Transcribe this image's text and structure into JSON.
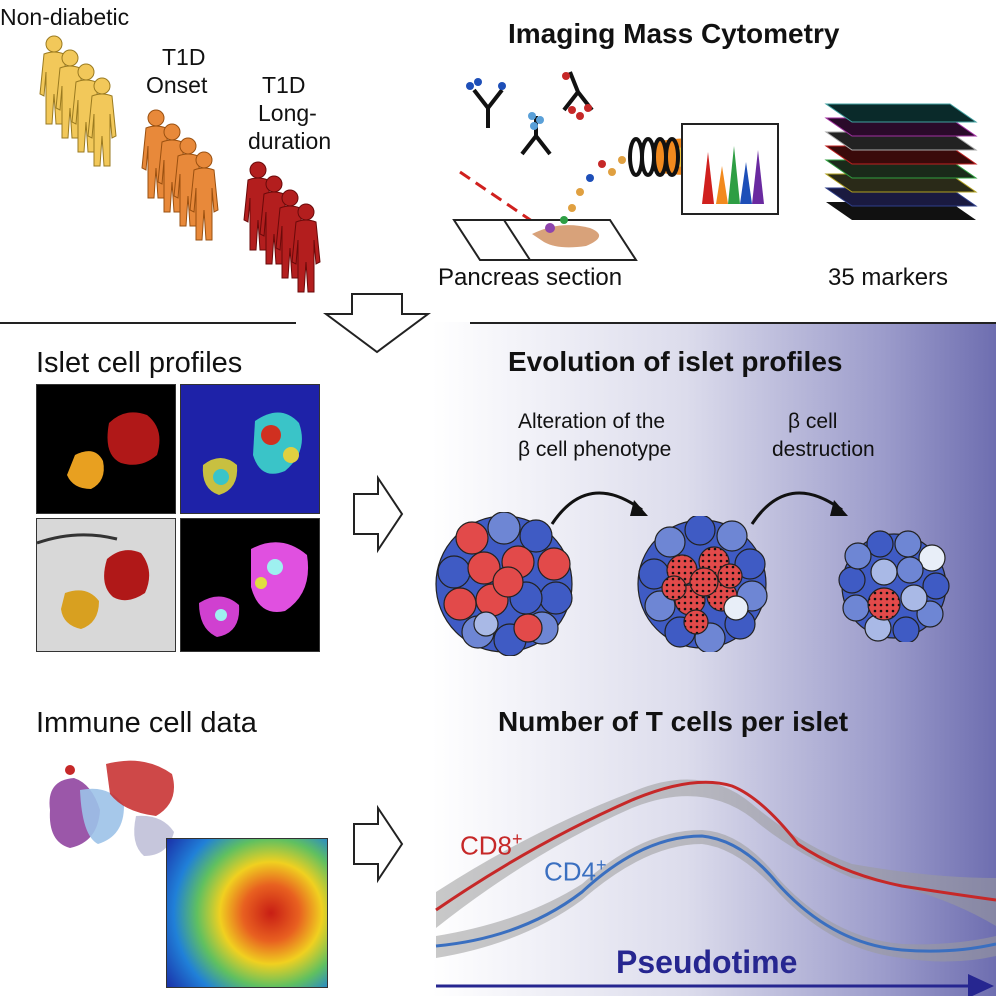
{
  "groups": {
    "non_diabetic": "Non-diabetic",
    "t1d_onset_1": "T1D",
    "t1d_onset_2": "Onset",
    "t1d_long_1": "T1D",
    "t1d_long_2": "Long-",
    "t1d_long_3": "duration"
  },
  "imc": {
    "title": "Imaging Mass Cytometry",
    "section_label": "Pancreas section",
    "markers_label": "35 markers"
  },
  "islet_profiles": {
    "title": "Islet cell profiles"
  },
  "immune_data": {
    "title": "Immune cell data"
  },
  "evolution": {
    "title": "Evolution of islet profiles",
    "step1_line1": "Alteration of the",
    "step1_line2": "β cell phenotype",
    "step2_line1": "β cell",
    "step2_line2": "destruction"
  },
  "tcells": {
    "title": "Number of T cells per islet",
    "cd8": "CD8",
    "cd4": "CD4",
    "plus": "+",
    "xlabel": "Pseudotime"
  },
  "colors": {
    "non_diabetic": "#f2c85a",
    "onset": "#e8893a",
    "long": "#b31e1e",
    "cd8": "#c62828",
    "cd4": "#3a6fc0",
    "pseudotime": "#262690",
    "beta_red": "#e24a4a",
    "blue_dark": "#3f5bc4",
    "blue_mid": "#6e86d4",
    "blue_light": "#a9b9e6"
  }
}
